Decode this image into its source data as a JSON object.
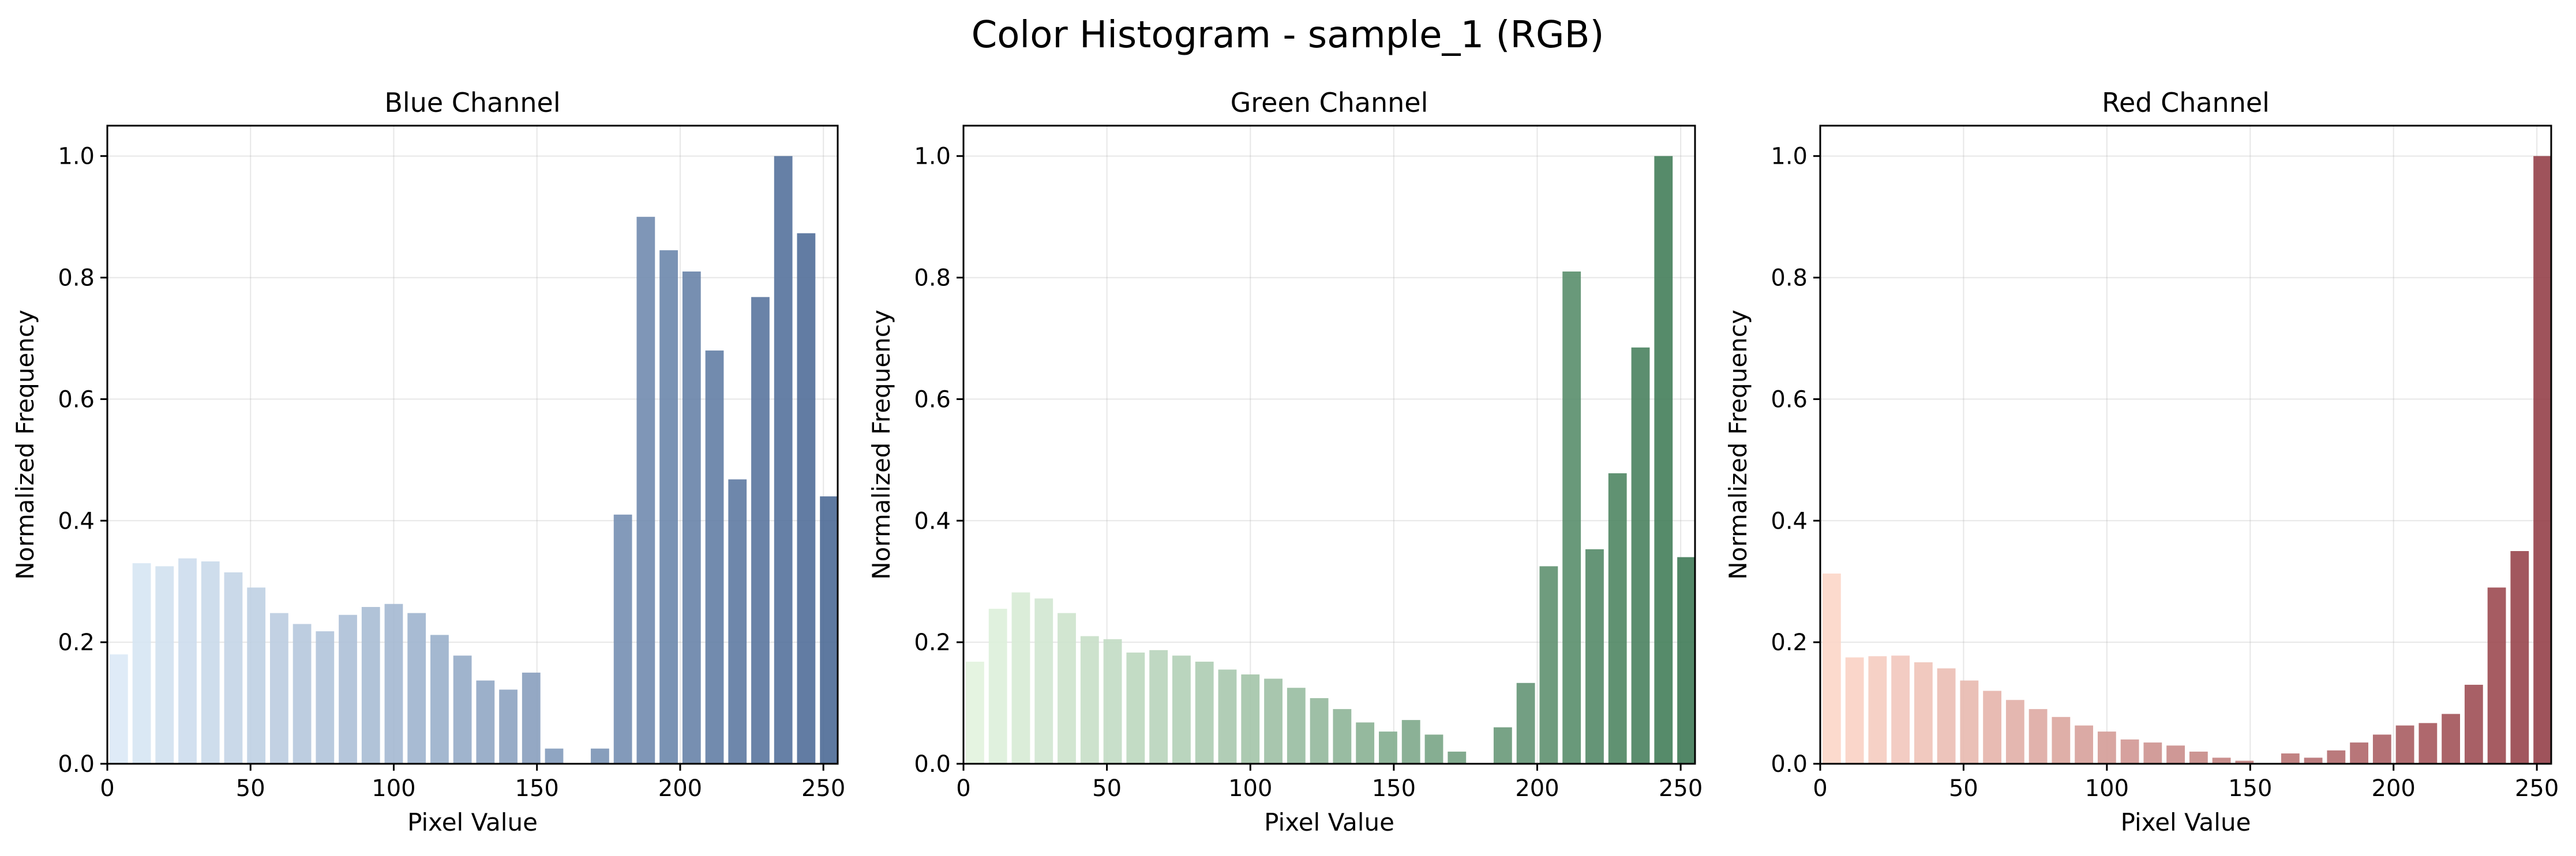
{
  "figure": {
    "title": "Color Histogram - sample_1 (RGB)"
  },
  "chart_data": [
    {
      "type": "bar",
      "title": "Blue Channel",
      "xlabel": "Pixel Value",
      "ylabel": "Normalized Frequency",
      "xlim": [
        0,
        255
      ],
      "ylim": [
        0,
        1.05
      ],
      "xticks": [
        0,
        50,
        100,
        150,
        200,
        250
      ],
      "yticks": [
        0.0,
        0.2,
        0.4,
        0.6,
        0.8,
        1.0
      ],
      "grid": true,
      "colormap": "Blues",
      "color_start": "#dbe9f6",
      "color_end": "#4c6a96",
      "bin_width": 8,
      "x": [
        4,
        12,
        20,
        28,
        36,
        44,
        52,
        60,
        68,
        76,
        84,
        92,
        100,
        108,
        116,
        124,
        132,
        140,
        148,
        156,
        164,
        172,
        180,
        188,
        196,
        204,
        212,
        220,
        228,
        236,
        244,
        252
      ],
      "values": [
        0.18,
        0.33,
        0.325,
        0.338,
        0.333,
        0.315,
        0.29,
        0.248,
        0.23,
        0.218,
        0.245,
        0.258,
        0.263,
        0.248,
        0.212,
        0.178,
        0.137,
        0.122,
        0.15,
        0.025,
        0.0,
        0.025,
        0.41,
        0.9,
        0.845,
        0.81,
        0.68,
        0.468,
        0.768,
        1.0,
        0.873,
        0.44
      ]
    },
    {
      "type": "bar",
      "title": "Green Channel",
      "xlabel": "Pixel Value",
      "ylabel": "Normalized Frequency",
      "xlim": [
        0,
        255
      ],
      "ylim": [
        0,
        1.05
      ],
      "xticks": [
        0,
        50,
        100,
        150,
        200,
        250
      ],
      "yticks": [
        0.0,
        0.2,
        0.4,
        0.6,
        0.8,
        1.0
      ],
      "grid": true,
      "colormap": "Greens",
      "color_start": "#e2f3de",
      "color_end": "#3f7a56",
      "bin_width": 8,
      "x": [
        4,
        12,
        20,
        28,
        36,
        44,
        52,
        60,
        68,
        76,
        84,
        92,
        100,
        108,
        116,
        124,
        132,
        140,
        148,
        156,
        164,
        172,
        180,
        188,
        196,
        204,
        212,
        220,
        228,
        236,
        244,
        252
      ],
      "values": [
        0.168,
        0.255,
        0.282,
        0.272,
        0.248,
        0.21,
        0.205,
        0.183,
        0.187,
        0.178,
        0.168,
        0.155,
        0.147,
        0.14,
        0.125,
        0.108,
        0.09,
        0.068,
        0.053,
        0.072,
        0.048,
        0.02,
        0.0,
        0.06,
        0.133,
        0.325,
        0.81,
        0.353,
        0.478,
        0.685,
        1.0,
        0.34
      ]
    },
    {
      "type": "bar",
      "title": "Red Channel",
      "xlabel": "Pixel Value",
      "ylabel": "Normalized Frequency",
      "xlim": [
        0,
        255
      ],
      "ylim": [
        0,
        1.05
      ],
      "xticks": [
        0,
        50,
        100,
        150,
        200,
        250
      ],
      "yticks": [
        0.0,
        0.2,
        0.4,
        0.6,
        0.8,
        1.0
      ],
      "grid": true,
      "colormap": "Reds",
      "color_start": "#fcd6c8",
      "color_end": "#954049",
      "bin_width": 8,
      "x": [
        4,
        12,
        20,
        28,
        36,
        44,
        52,
        60,
        68,
        76,
        84,
        92,
        100,
        108,
        116,
        124,
        132,
        140,
        148,
        156,
        164,
        172,
        180,
        188,
        196,
        204,
        212,
        220,
        228,
        236,
        244,
        252
      ],
      "values": [
        0.313,
        0.175,
        0.177,
        0.178,
        0.167,
        0.157,
        0.137,
        0.12,
        0.105,
        0.09,
        0.077,
        0.063,
        0.053,
        0.04,
        0.035,
        0.03,
        0.02,
        0.01,
        0.005,
        0.0,
        0.017,
        0.01,
        0.022,
        0.035,
        0.048,
        0.063,
        0.067,
        0.082,
        0.13,
        0.29,
        0.35,
        1.0
      ]
    }
  ]
}
